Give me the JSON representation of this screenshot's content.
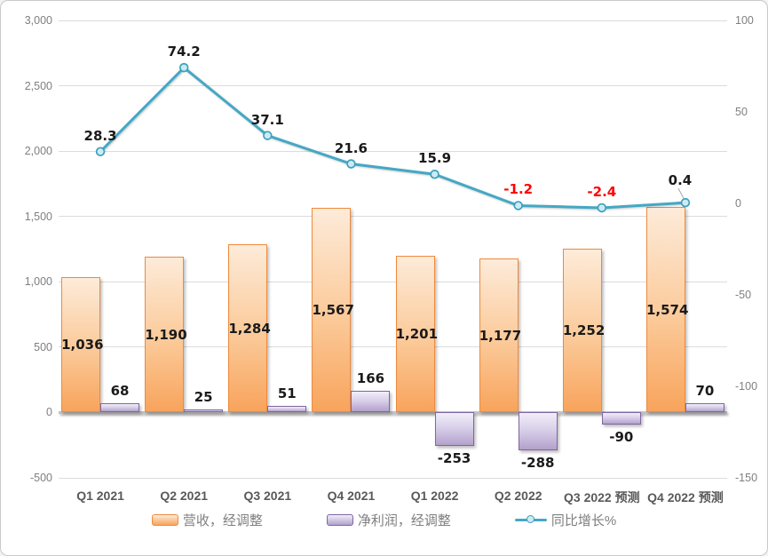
{
  "chart_data": {
    "type": "combo-bar-line",
    "categories": [
      "Q1 2021",
      "Q2 2021",
      "Q3 2021",
      "Q4 2021",
      "Q1 2022",
      "Q2 2022",
      "Q3 2022 预测",
      "Q4 2022 预测"
    ],
    "series": [
      {
        "name": "营收，经调整",
        "type": "bar",
        "axis": "left",
        "values": [
          1036,
          1190,
          1284,
          1567,
          1201,
          1177,
          1252,
          1574
        ],
        "labels": [
          "1,036",
          "1,190",
          "1,284",
          "1,567",
          "1,201",
          "1,177",
          "1,252",
          "1,574"
        ],
        "label_position": "inside-center",
        "colors": {
          "fill_top": "#FDEBD9",
          "fill_bottom": "#F8A45C",
          "border": "#EE8A3E"
        }
      },
      {
        "name": "净利润，经调整",
        "type": "bar",
        "axis": "left",
        "values": [
          68,
          25,
          51,
          166,
          -253,
          -288,
          -90,
          70
        ],
        "labels": [
          "68",
          "25",
          "51",
          "166",
          "-253",
          "-288",
          "-90",
          "70"
        ],
        "label_position": "outside-end",
        "colors": {
          "fill_top": "#F1EEF9",
          "fill_bottom": "#B3A1CC",
          "border": "#7E66A2"
        }
      },
      {
        "name": "同比增长%",
        "type": "line",
        "axis": "right",
        "values": [
          28.3,
          74.2,
          37.1,
          21.6,
          15.9,
          -1.2,
          -2.4,
          0.4
        ],
        "labels": [
          "28.3",
          "74.2",
          "37.1",
          "21.6",
          "15.9",
          "-1.2",
          "-2.4",
          "0.4"
        ],
        "colors": {
          "line": "#44A8C4",
          "marker_fill": "#CDEBF4",
          "marker_border": "#3C9FBC",
          "positive_label": "#1A1A1A",
          "negative_label": "#FF0000"
        },
        "callout_index": 7
      }
    ],
    "left_axis": {
      "min": -500,
      "max": 3000,
      "step": 500,
      "tick_labels": [
        "3,000",
        "2,500",
        "2,000",
        "1,500",
        "1,000",
        "500",
        "0",
        "-500"
      ]
    },
    "right_axis": {
      "min": -150,
      "max": 100,
      "step": 50,
      "tick_labels": [
        "100",
        "50",
        "0",
        "-50",
        "-100",
        "-150"
      ]
    },
    "grid": true,
    "legend": {
      "position": "bottom",
      "entries": [
        "营收，经调整",
        "净利润，经调整",
        "同比增长%"
      ]
    }
  }
}
